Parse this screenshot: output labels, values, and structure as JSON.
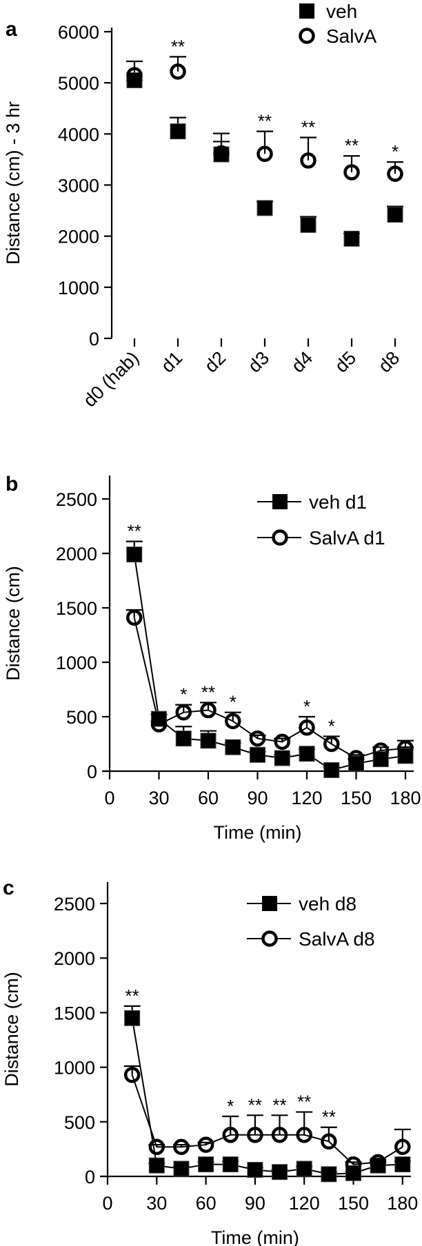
{
  "chart_data": [
    {
      "panel": "a",
      "type": "scatter",
      "title": "",
      "xlabel": "",
      "ylabel": "Distance (cm) - 3 hr",
      "ylim": [
        0,
        6000
      ],
      "yticks": [
        0,
        1000,
        2000,
        3000,
        4000,
        5000,
        6000
      ],
      "categories": [
        "d0 (hab)",
        "d1",
        "d2",
        "d3",
        "d4",
        "d5",
        "d8"
      ],
      "legend_position": "top-right",
      "series": [
        {
          "name": "veh",
          "marker": "square",
          "values": [
            5050,
            4050,
            3600,
            2550,
            2220,
            1950,
            2420
          ],
          "err_top": [
            5050,
            4320,
            3850,
            2680,
            2380,
            2050,
            2580
          ]
        },
        {
          "name": "SalvA",
          "marker": "circle",
          "values": [
            5150,
            5220,
            3620,
            3610,
            3480,
            3250,
            3220
          ],
          "err_top": [
            5420,
            5510,
            4010,
            4050,
            3930,
            3570,
            3450
          ]
        }
      ],
      "annotations": [
        "",
        "**",
        "",
        "**",
        "**",
        "**",
        "*"
      ],
      "grid": false
    },
    {
      "panel": "b",
      "type": "line",
      "title": "",
      "xlabel": "Time (min)",
      "ylabel": "Distance (cm)",
      "xlim": [
        0,
        180
      ],
      "ylim": [
        0,
        2500
      ],
      "xticks": [
        0,
        30,
        60,
        90,
        120,
        150,
        180
      ],
      "yticks": [
        0,
        500,
        1000,
        1500,
        2000,
        2500
      ],
      "x": [
        15,
        30,
        45,
        60,
        75,
        90,
        105,
        120,
        135,
        150,
        165,
        180
      ],
      "legend_position": "top-right",
      "series": [
        {
          "name": "veh d1",
          "marker": "square",
          "values": [
            1990,
            480,
            300,
            280,
            220,
            150,
            120,
            160,
            10,
            70,
            110,
            140
          ],
          "err_top": [
            2110,
            520,
            410,
            370,
            260,
            180,
            150,
            200,
            40,
            110,
            170,
            220
          ]
        },
        {
          "name": "SalvA d1",
          "marker": "circle",
          "values": [
            1410,
            430,
            540,
            560,
            460,
            300,
            270,
            400,
            250,
            120,
            190,
            210
          ],
          "err_top": [
            1480,
            460,
            610,
            630,
            540,
            330,
            300,
            500,
            320,
            150,
            220,
            280
          ]
        }
      ],
      "annotations": [
        "**",
        "",
        "*",
        "**",
        "*",
        "",
        "",
        "*",
        "*",
        "",
        "",
        ""
      ],
      "grid": false
    },
    {
      "panel": "c",
      "type": "line",
      "title": "",
      "xlabel": "Time (min)",
      "ylabel": "Distance (cm)",
      "xlim": [
        0,
        180
      ],
      "ylim": [
        0,
        2500
      ],
      "xticks": [
        0,
        30,
        60,
        90,
        120,
        150,
        180
      ],
      "yticks": [
        0,
        500,
        1000,
        1500,
        2000,
        2500
      ],
      "x": [
        15,
        30,
        45,
        60,
        75,
        90,
        105,
        120,
        135,
        150,
        165,
        180
      ],
      "legend_position": "top-right",
      "series": [
        {
          "name": "veh d8",
          "marker": "square",
          "values": [
            1450,
            100,
            70,
            110,
            110,
            60,
            40,
            70,
            20,
            30,
            100,
            110
          ],
          "err_top": [
            1560,
            120,
            90,
            130,
            140,
            80,
            60,
            90,
            40,
            50,
            130,
            140
          ]
        },
        {
          "name": "SalvA d8",
          "marker": "circle",
          "values": [
            930,
            270,
            270,
            290,
            380,
            380,
            380,
            380,
            320,
            110,
            130,
            270
          ],
          "err_top": [
            1010,
            290,
            290,
            310,
            550,
            560,
            560,
            590,
            450,
            130,
            150,
            430
          ]
        }
      ],
      "annotations": [
        "**",
        "",
        "",
        "",
        "*",
        "**",
        "**",
        "**",
        "**",
        "",
        "",
        ""
      ],
      "grid": false
    }
  ]
}
